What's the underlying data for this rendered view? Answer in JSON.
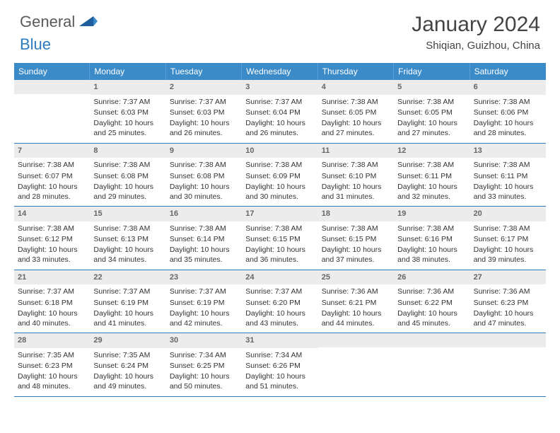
{
  "logo": {
    "general": "General",
    "blue": "Blue"
  },
  "title": "January 2024",
  "location": "Shiqian, Guizhou, China",
  "colors": {
    "header_bg": "#3b8bc9",
    "header_text": "#ffffff",
    "accent": "#2e7bc0",
    "daynum_bg": "#ececec",
    "daynum_text": "#666666",
    "body_text": "#333333"
  },
  "day_headers": [
    "Sunday",
    "Monday",
    "Tuesday",
    "Wednesday",
    "Thursday",
    "Friday",
    "Saturday"
  ],
  "weeks": [
    [
      null,
      {
        "n": "1",
        "sr": "7:37 AM",
        "ss": "6:03 PM",
        "dl": "10 hours and 25 minutes."
      },
      {
        "n": "2",
        "sr": "7:37 AM",
        "ss": "6:03 PM",
        "dl": "10 hours and 26 minutes."
      },
      {
        "n": "3",
        "sr": "7:37 AM",
        "ss": "6:04 PM",
        "dl": "10 hours and 26 minutes."
      },
      {
        "n": "4",
        "sr": "7:38 AM",
        "ss": "6:05 PM",
        "dl": "10 hours and 27 minutes."
      },
      {
        "n": "5",
        "sr": "7:38 AM",
        "ss": "6:05 PM",
        "dl": "10 hours and 27 minutes."
      },
      {
        "n": "6",
        "sr": "7:38 AM",
        "ss": "6:06 PM",
        "dl": "10 hours and 28 minutes."
      }
    ],
    [
      {
        "n": "7",
        "sr": "7:38 AM",
        "ss": "6:07 PM",
        "dl": "10 hours and 28 minutes."
      },
      {
        "n": "8",
        "sr": "7:38 AM",
        "ss": "6:08 PM",
        "dl": "10 hours and 29 minutes."
      },
      {
        "n": "9",
        "sr": "7:38 AM",
        "ss": "6:08 PM",
        "dl": "10 hours and 30 minutes."
      },
      {
        "n": "10",
        "sr": "7:38 AM",
        "ss": "6:09 PM",
        "dl": "10 hours and 30 minutes."
      },
      {
        "n": "11",
        "sr": "7:38 AM",
        "ss": "6:10 PM",
        "dl": "10 hours and 31 minutes."
      },
      {
        "n": "12",
        "sr": "7:38 AM",
        "ss": "6:11 PM",
        "dl": "10 hours and 32 minutes."
      },
      {
        "n": "13",
        "sr": "7:38 AM",
        "ss": "6:11 PM",
        "dl": "10 hours and 33 minutes."
      }
    ],
    [
      {
        "n": "14",
        "sr": "7:38 AM",
        "ss": "6:12 PM",
        "dl": "10 hours and 33 minutes."
      },
      {
        "n": "15",
        "sr": "7:38 AM",
        "ss": "6:13 PM",
        "dl": "10 hours and 34 minutes."
      },
      {
        "n": "16",
        "sr": "7:38 AM",
        "ss": "6:14 PM",
        "dl": "10 hours and 35 minutes."
      },
      {
        "n": "17",
        "sr": "7:38 AM",
        "ss": "6:15 PM",
        "dl": "10 hours and 36 minutes."
      },
      {
        "n": "18",
        "sr": "7:38 AM",
        "ss": "6:15 PM",
        "dl": "10 hours and 37 minutes."
      },
      {
        "n": "19",
        "sr": "7:38 AM",
        "ss": "6:16 PM",
        "dl": "10 hours and 38 minutes."
      },
      {
        "n": "20",
        "sr": "7:38 AM",
        "ss": "6:17 PM",
        "dl": "10 hours and 39 minutes."
      }
    ],
    [
      {
        "n": "21",
        "sr": "7:37 AM",
        "ss": "6:18 PM",
        "dl": "10 hours and 40 minutes."
      },
      {
        "n": "22",
        "sr": "7:37 AM",
        "ss": "6:19 PM",
        "dl": "10 hours and 41 minutes."
      },
      {
        "n": "23",
        "sr": "7:37 AM",
        "ss": "6:19 PM",
        "dl": "10 hours and 42 minutes."
      },
      {
        "n": "24",
        "sr": "7:37 AM",
        "ss": "6:20 PM",
        "dl": "10 hours and 43 minutes."
      },
      {
        "n": "25",
        "sr": "7:36 AM",
        "ss": "6:21 PM",
        "dl": "10 hours and 44 minutes."
      },
      {
        "n": "26",
        "sr": "7:36 AM",
        "ss": "6:22 PM",
        "dl": "10 hours and 45 minutes."
      },
      {
        "n": "27",
        "sr": "7:36 AM",
        "ss": "6:23 PM",
        "dl": "10 hours and 47 minutes."
      }
    ],
    [
      {
        "n": "28",
        "sr": "7:35 AM",
        "ss": "6:23 PM",
        "dl": "10 hours and 48 minutes."
      },
      {
        "n": "29",
        "sr": "7:35 AM",
        "ss": "6:24 PM",
        "dl": "10 hours and 49 minutes."
      },
      {
        "n": "30",
        "sr": "7:34 AM",
        "ss": "6:25 PM",
        "dl": "10 hours and 50 minutes."
      },
      {
        "n": "31",
        "sr": "7:34 AM",
        "ss": "6:26 PM",
        "dl": "10 hours and 51 minutes."
      },
      null,
      null,
      null
    ]
  ],
  "labels": {
    "sunrise": "Sunrise:",
    "sunset": "Sunset:",
    "daylight": "Daylight:"
  }
}
